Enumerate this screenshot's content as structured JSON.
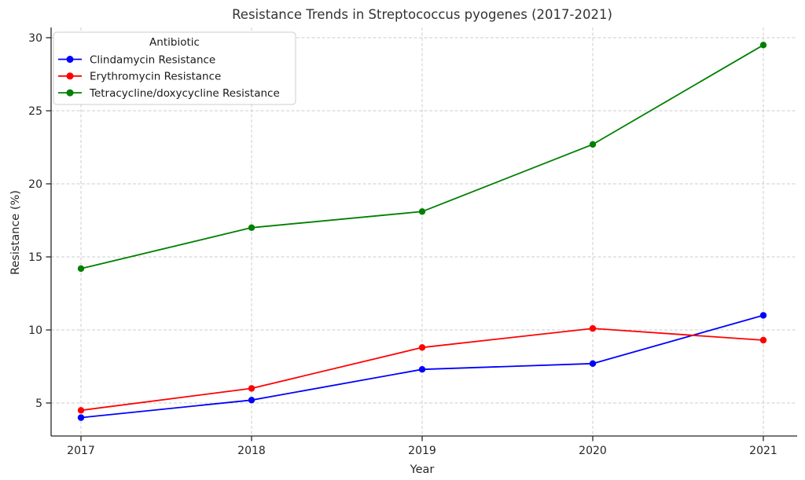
{
  "figure": {
    "background": "#ffffff"
  },
  "chart_data": {
    "type": "line",
    "title": "Resistance Trends in Streptococcus pyogenes (2017-2021)",
    "xlabel": "Year",
    "ylabel": "Resistance (%)",
    "x": [
      2017,
      2018,
      2019,
      2020,
      2021
    ],
    "yticks": [
      5,
      10,
      15,
      20,
      25,
      30
    ],
    "ylim": [
      2.7,
      30.7
    ],
    "xlim": [
      2016.8,
      2021.2
    ],
    "grid": true,
    "grid_style": "dashed",
    "legend": {
      "title": "Antibiotic",
      "position": "upper left"
    },
    "series": [
      {
        "name": "Clindamycin Resistance",
        "color": "#0000ff",
        "marker": "circle",
        "values": [
          4.0,
          5.2,
          7.3,
          7.7,
          11.0
        ]
      },
      {
        "name": "Erythromycin Resistance",
        "color": "#ff0000",
        "marker": "circle",
        "values": [
          4.5,
          6.0,
          8.8,
          10.1,
          9.3
        ]
      },
      {
        "name": "Tetracycline/doxycycline Resistance",
        "color": "#008000",
        "marker": "circle",
        "values": [
          14.2,
          17.0,
          18.1,
          22.7,
          29.5
        ]
      }
    ]
  }
}
